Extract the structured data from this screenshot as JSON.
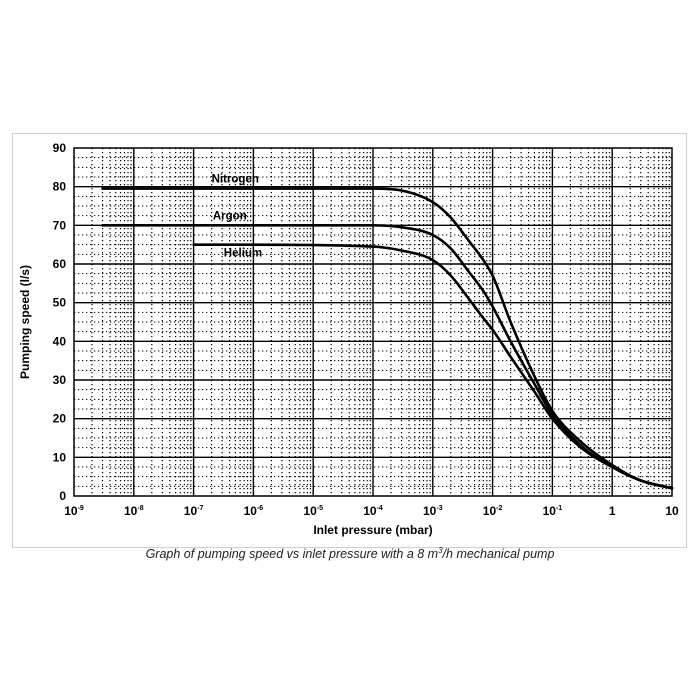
{
  "caption": {
    "before": "Graph of pumping speed vs inlet pressure with a 8 m",
    "sup": "3",
    "after": "/h mechanical pump"
  },
  "chart_data": {
    "type": "line",
    "xscale": "log",
    "xlabel": "Inlet pressure (mbar)",
    "ylabel": "Pumping speed (l/s)",
    "xlim": [
      1e-09,
      10
    ],
    "ylim": [
      0,
      90
    ],
    "grid": true,
    "x_ticks": [
      {
        "base": "10",
        "exp": "-9"
      },
      {
        "base": "10",
        "exp": "-8"
      },
      {
        "base": "10",
        "exp": "-7"
      },
      {
        "base": "10",
        "exp": "-6"
      },
      {
        "base": "10",
        "exp": "-5"
      },
      {
        "base": "10",
        "exp": "-4"
      },
      {
        "base": "10",
        "exp": "-3"
      },
      {
        "base": "10",
        "exp": "-2"
      },
      {
        "base": "10",
        "exp": "-1"
      },
      {
        "base": "1",
        "exp": ""
      },
      {
        "base": "10",
        "exp": ""
      }
    ],
    "y_ticks": [
      "0",
      "10",
      "20",
      "30",
      "40",
      "50",
      "60",
      "70",
      "80",
      "90"
    ],
    "series": [
      {
        "name": "Nitrogen",
        "x": [
          3e-09,
          1e-06,
          0.0001,
          0.0003,
          0.001,
          0.002,
          0.004,
          0.007,
          0.01,
          0.02,
          0.05,
          0.1,
          0.3,
          1,
          3,
          10
        ],
        "y": [
          79.5,
          79.5,
          79.5,
          79,
          76,
          72,
          66,
          61,
          57,
          45,
          31,
          22,
          14,
          8,
          4,
          2
        ]
      },
      {
        "name": "Argon",
        "x": [
          3e-09,
          1e-06,
          0.0001,
          0.0003,
          0.001,
          0.002,
          0.004,
          0.007,
          0.01,
          0.02,
          0.05,
          0.1,
          0.3,
          1,
          3,
          10
        ],
        "y": [
          70,
          70,
          70,
          69.5,
          67.5,
          64,
          58,
          53,
          49,
          40,
          29,
          21,
          13,
          7.5,
          4,
          2
        ]
      },
      {
        "name": "Helium",
        "x": [
          1e-07,
          1e-06,
          0.0001,
          0.0003,
          0.001,
          0.002,
          0.004,
          0.007,
          0.01,
          0.02,
          0.05,
          0.1,
          0.3,
          1,
          3,
          10
        ],
        "y": [
          65,
          65,
          64.5,
          63.5,
          61,
          57,
          51,
          46,
          43,
          36,
          27,
          20,
          12.5,
          7.5,
          4,
          2
        ]
      }
    ],
    "line_color": "#000000",
    "grid_color": "#000000"
  }
}
